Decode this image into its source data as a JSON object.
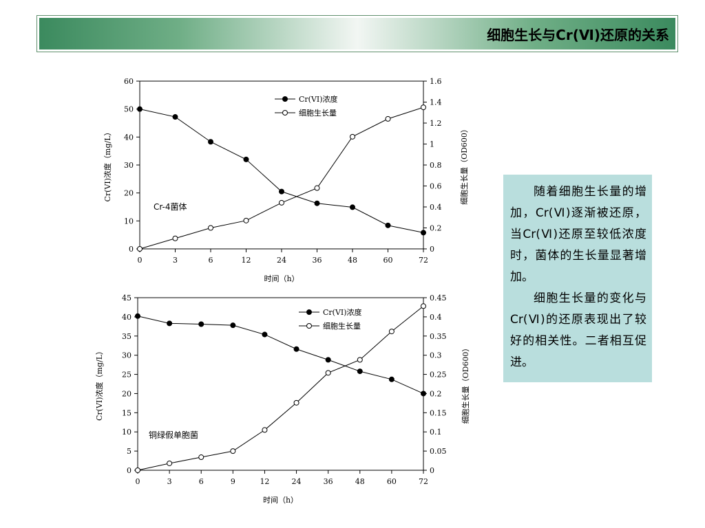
{
  "slide": {
    "title": "细胞生长与Cr(Ⅵ)还原的关系"
  },
  "note": {
    "paragraphs": [
      "随着细胞生长量的增加，Cr(Ⅵ)逐渐被还原，当Cr(Ⅵ)还原至较低浓度时，菌体的生长量显著增加。",
      "细胞生长量的变化与Cr(Ⅵ)的还原表现出了较好的相关性。二者相互促进。"
    ]
  },
  "chart_data": [
    {
      "type": "line",
      "annotation": "Cr-4菌体",
      "categories": [
        "0",
        "3",
        "6",
        "12",
        "24",
        "36",
        "48",
        "60",
        "72"
      ],
      "xlabel": "时间（h）",
      "ylabel": "Cr(VI)浓度（mg/L）",
      "y2label": "细胞生长量（OD600）",
      "ylim": [
        0,
        60
      ],
      "y2lim": [
        0,
        1.6
      ],
      "yticks": [
        "0",
        "10",
        "20",
        "30",
        "40",
        "50",
        "60"
      ],
      "y2ticks": [
        "0",
        "0.2",
        "0.4",
        "0.6",
        "0.8",
        "1",
        "1.2",
        "1.4",
        "1.6"
      ],
      "legend_position": "top-right",
      "series": [
        {
          "name": "Cr(VI)浓度",
          "axis": "left",
          "marker": "filled",
          "values": [
            50,
            47.2,
            38.3,
            32,
            20.5,
            16.3,
            14.9,
            8.4,
            5.8
          ]
        },
        {
          "name": "细胞生长量",
          "axis": "right",
          "marker": "open",
          "values": [
            0,
            0.1,
            0.2,
            0.27,
            0.44,
            0.58,
            1.07,
            1.24,
            1.35
          ]
        }
      ]
    },
    {
      "type": "line",
      "annotation": "铜绿假单胞菌",
      "categories": [
        "0",
        "3",
        "6",
        "9",
        "12",
        "24",
        "36",
        "48",
        "60",
        "72"
      ],
      "xlabel": "时间（h）",
      "ylabel": "Cr(VI)浓度（mg/L）",
      "y2label": "细胞生长量（OD600）",
      "ylim": [
        0,
        45
      ],
      "y2lim": [
        0,
        0.45
      ],
      "yticks": [
        "0",
        "5",
        "10",
        "15",
        "20",
        "25",
        "30",
        "35",
        "40",
        "45"
      ],
      "y2ticks": [
        "0",
        "0.05",
        "0.1",
        "0.15",
        "0.2",
        "0.25",
        "0.3",
        "0.35",
        "0.4",
        "0.45"
      ],
      "legend_position": "top-right",
      "series": [
        {
          "name": "Cr(VI)浓度",
          "axis": "left",
          "marker": "filled",
          "values": [
            40.2,
            38.3,
            38.1,
            37.8,
            35.4,
            31.6,
            28.8,
            25.8,
            23.7,
            20
          ]
        },
        {
          "name": "细胞生长量",
          "axis": "right",
          "marker": "open",
          "values": [
            0,
            0.018,
            0.034,
            0.05,
            0.105,
            0.176,
            0.254,
            0.288,
            0.362,
            0.428
          ]
        }
      ]
    }
  ]
}
